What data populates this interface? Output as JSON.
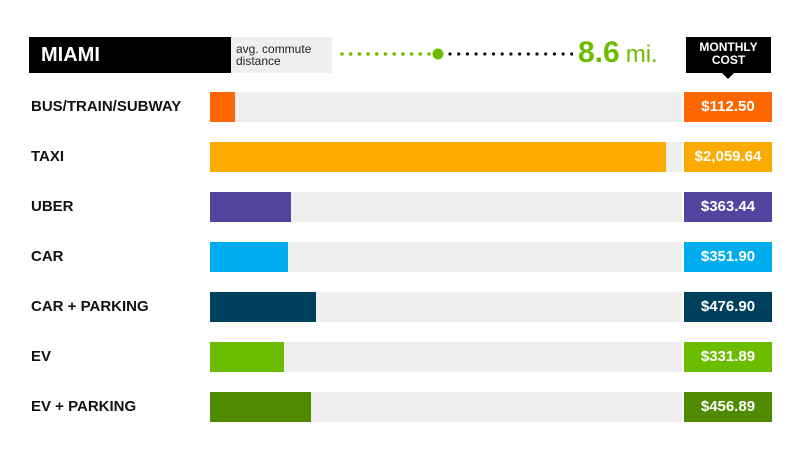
{
  "header": {
    "city": "MIAMI",
    "avg_label_line1": "avg. commute",
    "avg_label_line2": "distance",
    "distance_value": "8.6",
    "distance_unit": "mi.",
    "cost_header_line1": "MONTHLY",
    "cost_header_line2": "COST"
  },
  "chart_data": {
    "type": "bar",
    "orientation": "horizontal",
    "categories": [
      "BUS/TRAIN/SUBWAY",
      "TAXI",
      "UBER",
      "CAR",
      "CAR + PARKING",
      "EV",
      "EV + PARKING"
    ],
    "values": [
      112.5,
      2059.64,
      363.44,
      351.9,
      476.9,
      331.89,
      456.89
    ],
    "value_labels": [
      "$112.50",
      "$2,059.64",
      "$363.44",
      "$351.90",
      "$476.90",
      "$331.89",
      "$456.89"
    ],
    "colors": [
      "#ff6600",
      "#fbaa00",
      "#55449f",
      "#00aeef",
      "#00405f",
      "#6cbd00",
      "#4f8a00"
    ],
    "xlim": [
      0,
      2130
    ],
    "grid": false
  },
  "colors": {
    "accent_green": "#6cbd00",
    "track": "#efefef"
  }
}
